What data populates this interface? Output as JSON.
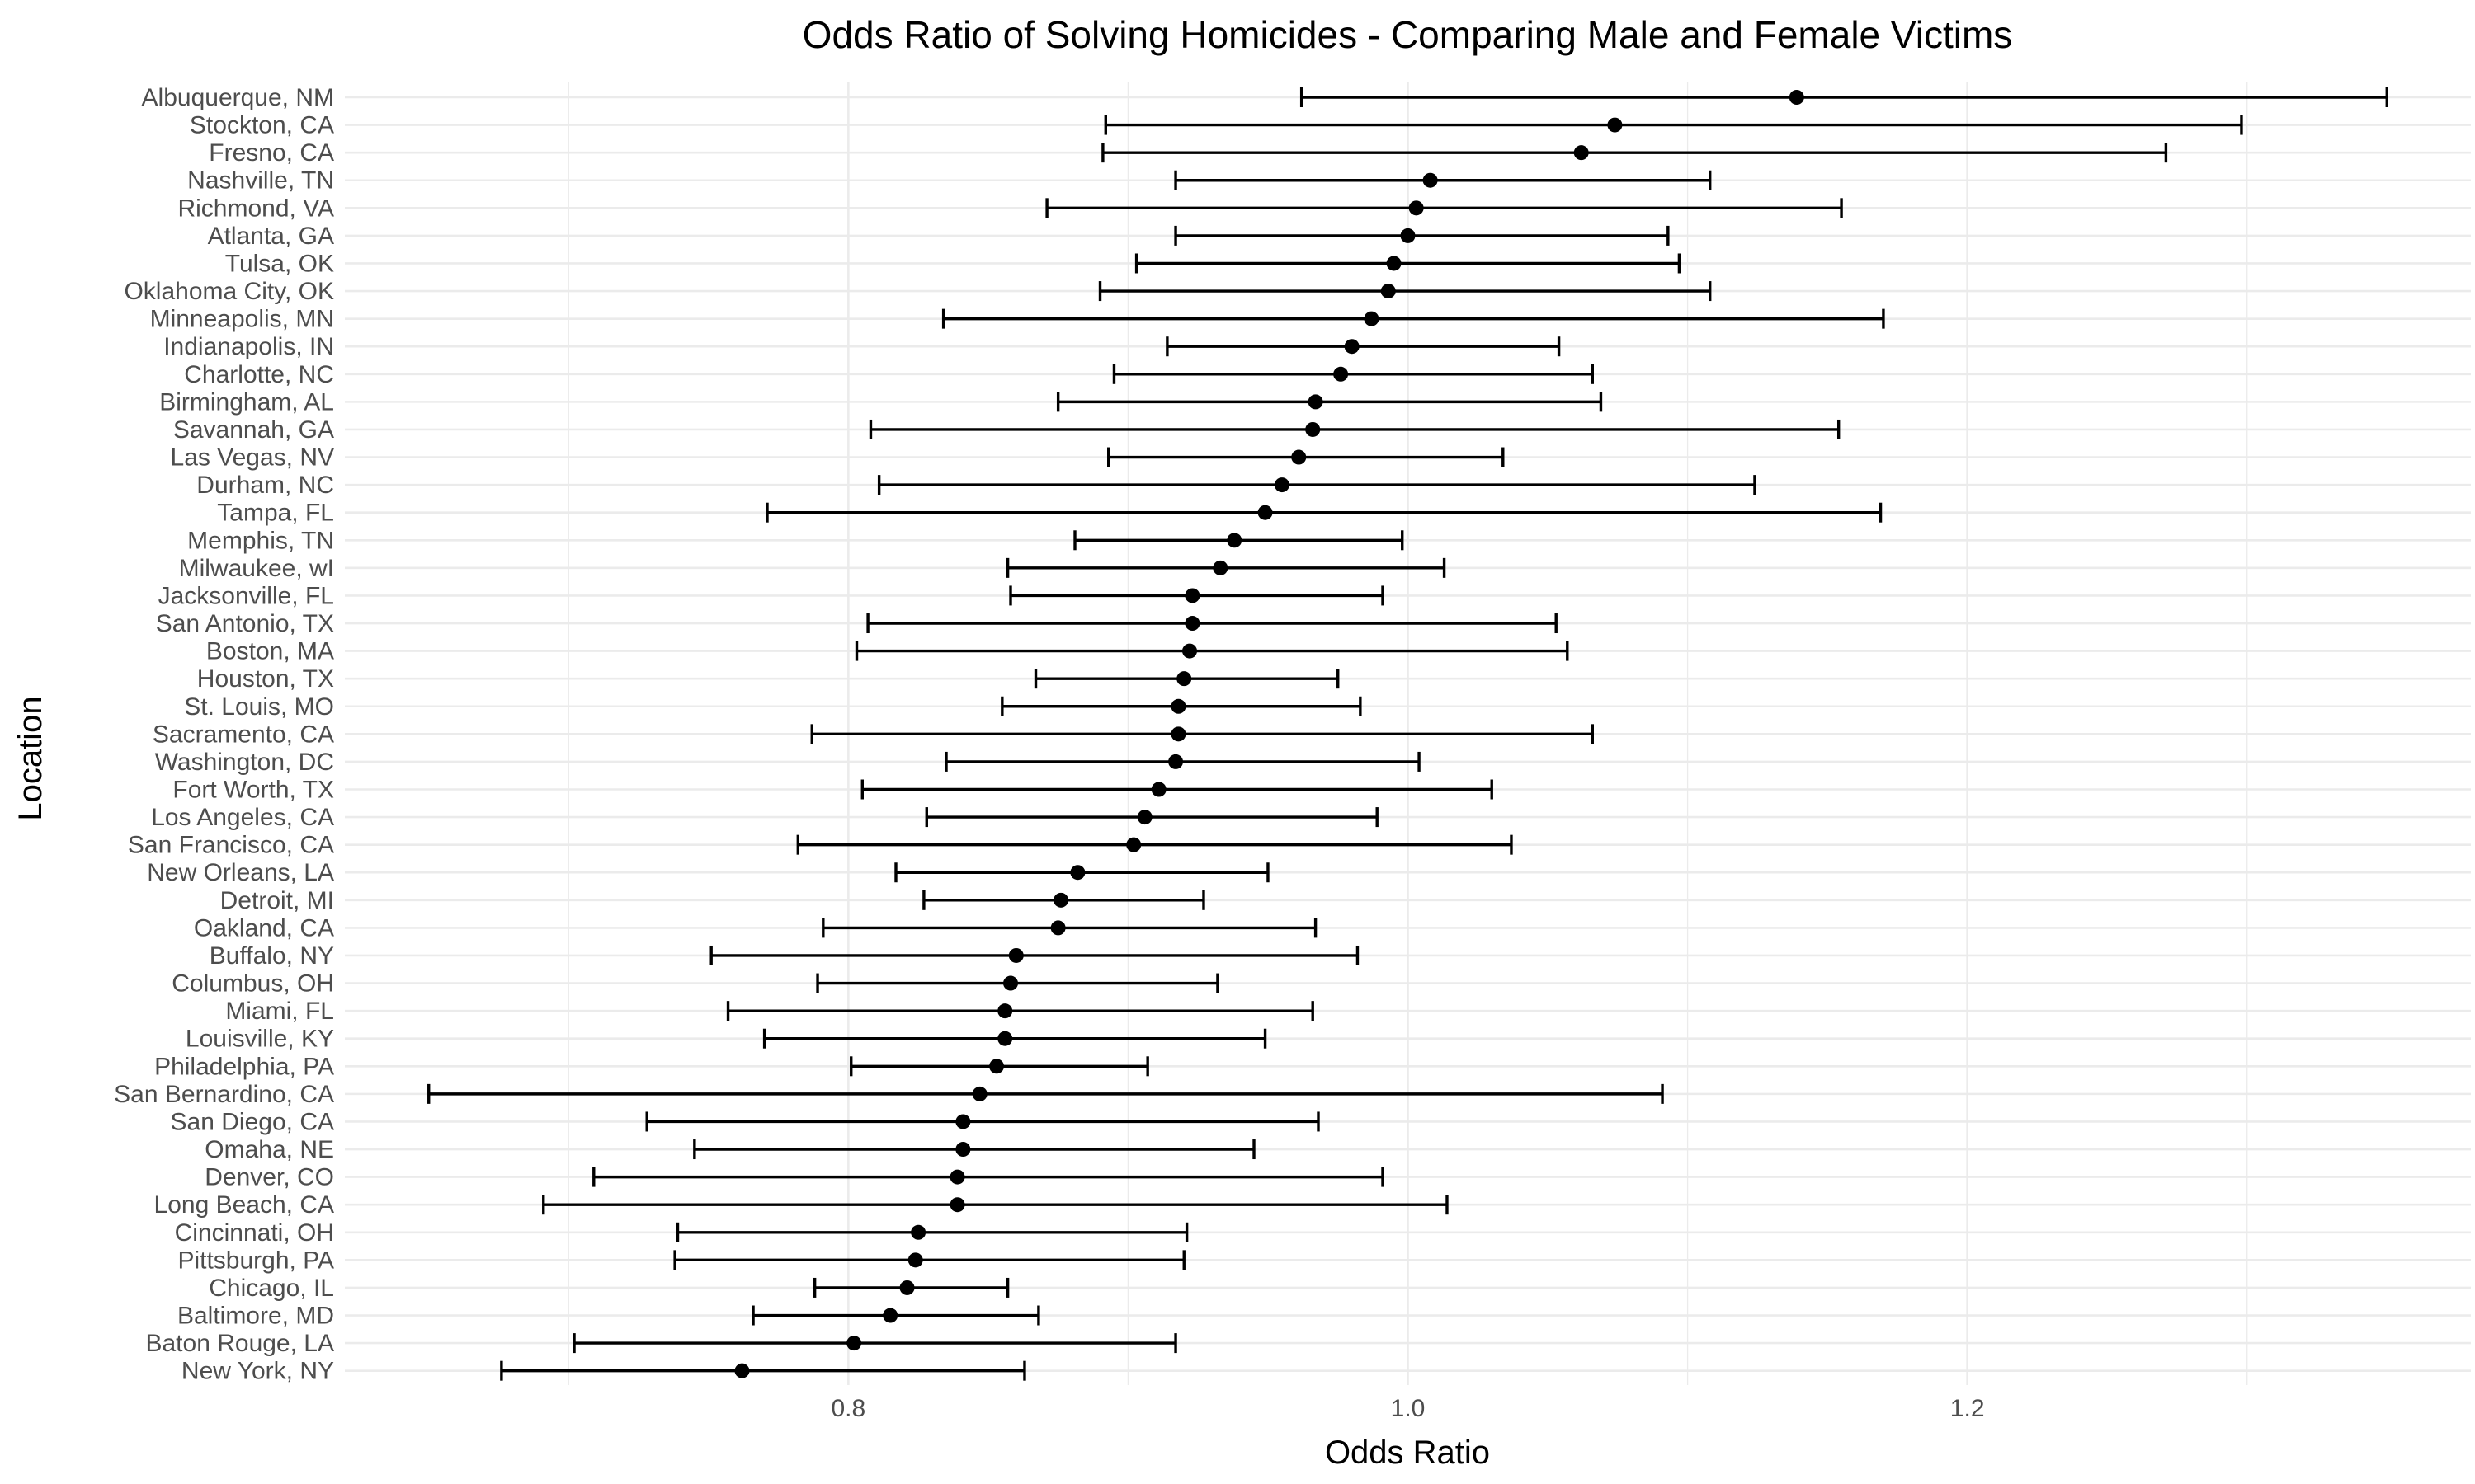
{
  "chart_data": {
    "type": "errorbar",
    "title": "Odds Ratio of Solving Homicides - Comparing Male and Female Victims",
    "xlabel": "Odds Ratio",
    "ylabel": "Location",
    "xlim": [
      0.62,
      1.38
    ],
    "x_major_ticks": [
      0.8,
      1.0,
      1.2
    ],
    "x_tick_labels": [
      "0.8",
      "1.0",
      "1.2"
    ],
    "x_minor_ticks": [
      0.7,
      0.9,
      1.1,
      1.3
    ],
    "grid": true,
    "legend": "none",
    "points": [
      {
        "location": "Albuquerque, NM",
        "estimate": 1.139,
        "lower": 0.962,
        "upper": 1.35
      },
      {
        "location": "Stockton, CA",
        "estimate": 1.074,
        "lower": 0.892,
        "upper": 1.298
      },
      {
        "location": "Fresno, CA",
        "estimate": 1.062,
        "lower": 0.891,
        "upper": 1.271
      },
      {
        "location": "Nashville, TN",
        "estimate": 1.008,
        "lower": 0.917,
        "upper": 1.108
      },
      {
        "location": "Richmond, VA",
        "estimate": 1.003,
        "lower": 0.871,
        "upper": 1.155
      },
      {
        "location": "Atlanta, GA",
        "estimate": 1.0,
        "lower": 0.917,
        "upper": 1.093
      },
      {
        "location": "Tulsa, OK",
        "estimate": 0.995,
        "lower": 0.903,
        "upper": 1.097
      },
      {
        "location": "Oklahoma City, OK",
        "estimate": 0.993,
        "lower": 0.89,
        "upper": 1.108
      },
      {
        "location": "Minneapolis, MN",
        "estimate": 0.987,
        "lower": 0.834,
        "upper": 1.17
      },
      {
        "location": "Indianapolis, IN",
        "estimate": 0.98,
        "lower": 0.914,
        "upper": 1.054
      },
      {
        "location": "Charlotte, NC",
        "estimate": 0.976,
        "lower": 0.895,
        "upper": 1.066
      },
      {
        "location": "Birmingham, AL",
        "estimate": 0.967,
        "lower": 0.875,
        "upper": 1.069
      },
      {
        "location": "Savannah, GA",
        "estimate": 0.966,
        "lower": 0.808,
        "upper": 1.154
      },
      {
        "location": "Las Vegas, NV",
        "estimate": 0.961,
        "lower": 0.893,
        "upper": 1.034
      },
      {
        "location": "Durham, NC",
        "estimate": 0.955,
        "lower": 0.811,
        "upper": 1.124
      },
      {
        "location": "Tampa, FL",
        "estimate": 0.949,
        "lower": 0.771,
        "upper": 1.169
      },
      {
        "location": "Memphis, TN",
        "estimate": 0.938,
        "lower": 0.881,
        "upper": 0.998
      },
      {
        "location": "Milwaukee, wI",
        "estimate": 0.933,
        "lower": 0.857,
        "upper": 1.013
      },
      {
        "location": "Jacksonville, FL",
        "estimate": 0.923,
        "lower": 0.858,
        "upper": 0.991
      },
      {
        "location": "San Antonio, TX",
        "estimate": 0.923,
        "lower": 0.807,
        "upper": 1.053
      },
      {
        "location": "Boston, MA",
        "estimate": 0.922,
        "lower": 0.803,
        "upper": 1.057
      },
      {
        "location": "Houston, TX",
        "estimate": 0.92,
        "lower": 0.867,
        "upper": 0.975
      },
      {
        "location": "St. Louis, MO",
        "estimate": 0.918,
        "lower": 0.855,
        "upper": 0.983
      },
      {
        "location": "Sacramento, CA",
        "estimate": 0.918,
        "lower": 0.787,
        "upper": 1.066
      },
      {
        "location": "Washington, DC",
        "estimate": 0.917,
        "lower": 0.835,
        "upper": 1.004
      },
      {
        "location": "Fort Worth, TX",
        "estimate": 0.911,
        "lower": 0.805,
        "upper": 1.03
      },
      {
        "location": "Los Angeles, CA",
        "estimate": 0.906,
        "lower": 0.828,
        "upper": 0.989
      },
      {
        "location": "San Francisco, CA",
        "estimate": 0.902,
        "lower": 0.782,
        "upper": 1.037
      },
      {
        "location": "New Orleans, LA",
        "estimate": 0.882,
        "lower": 0.817,
        "upper": 0.95
      },
      {
        "location": "Detroit, MI",
        "estimate": 0.876,
        "lower": 0.827,
        "upper": 0.927
      },
      {
        "location": "Oakland, CA",
        "estimate": 0.875,
        "lower": 0.791,
        "upper": 0.967
      },
      {
        "location": "Buffalo, NY",
        "estimate": 0.86,
        "lower": 0.751,
        "upper": 0.982
      },
      {
        "location": "Columbus, OH",
        "estimate": 0.858,
        "lower": 0.789,
        "upper": 0.932
      },
      {
        "location": "Miami, FL",
        "estimate": 0.856,
        "lower": 0.757,
        "upper": 0.966
      },
      {
        "location": "Louisville, KY",
        "estimate": 0.856,
        "lower": 0.77,
        "upper": 0.949
      },
      {
        "location": "Philadelphia, PA",
        "estimate": 0.853,
        "lower": 0.801,
        "upper": 0.907
      },
      {
        "location": "San Bernardino, CA",
        "estimate": 0.847,
        "lower": 0.65,
        "upper": 1.091
      },
      {
        "location": "San Diego, CA",
        "estimate": 0.841,
        "lower": 0.728,
        "upper": 0.968
      },
      {
        "location": "Omaha, NE",
        "estimate": 0.841,
        "lower": 0.745,
        "upper": 0.945
      },
      {
        "location": "Denver, CO",
        "estimate": 0.839,
        "lower": 0.709,
        "upper": 0.991
      },
      {
        "location": "Long Beach, CA",
        "estimate": 0.839,
        "lower": 0.691,
        "upper": 1.014
      },
      {
        "location": "Cincinnati, OH",
        "estimate": 0.825,
        "lower": 0.739,
        "upper": 0.921
      },
      {
        "location": "Pittsburgh, PA",
        "estimate": 0.824,
        "lower": 0.738,
        "upper": 0.92
      },
      {
        "location": "Chicago, IL",
        "estimate": 0.821,
        "lower": 0.788,
        "upper": 0.857
      },
      {
        "location": "Baltimore, MD",
        "estimate": 0.815,
        "lower": 0.766,
        "upper": 0.868
      },
      {
        "location": "Baton Rouge, LA",
        "estimate": 0.802,
        "lower": 0.702,
        "upper": 0.917
      },
      {
        "location": "New York, NY",
        "estimate": 0.762,
        "lower": 0.676,
        "upper": 0.863
      }
    ]
  }
}
